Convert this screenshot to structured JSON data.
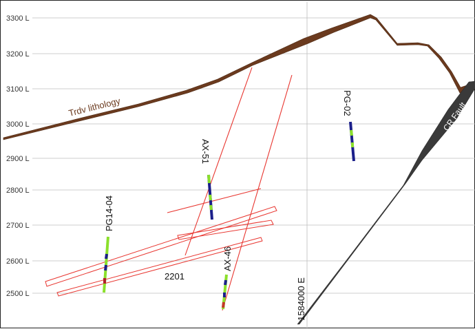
{
  "levels": [
    "3300 L",
    "3200 L",
    "3100 L",
    "3000 L",
    "2900 L",
    "2800 L",
    "2700 L",
    "2600 L",
    "2500 L"
  ],
  "easting_label": "1584000 E",
  "labels": {
    "trdv": "Trdv lithology",
    "fault": "CR Fault",
    "zone": "2201",
    "holes": [
      "PG14-04",
      "AX-51",
      "AX-46",
      "PG-02"
    ]
  },
  "colors": {
    "trdv": "#6b3a1e",
    "fault": "#3a3a3a",
    "zone": "#e8352f",
    "hole_green": "#8be02b",
    "hole_blue": "#1b1f8a"
  }
}
